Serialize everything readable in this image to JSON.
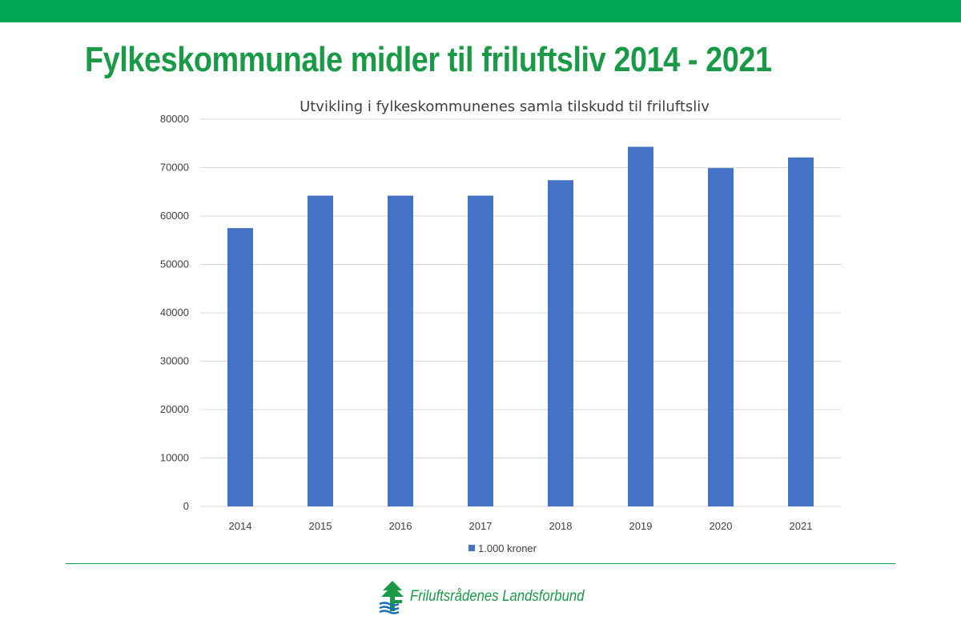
{
  "slide": {
    "title": "Fylkeskommunale midler til friluftsliv 2014 - 2021",
    "footer_brand": "Friluftsrådenes Landsforbund"
  },
  "colors": {
    "band": "#00a651",
    "title": "#1a9a47",
    "bar": "#4472c4",
    "grid": "#d9d9d9",
    "text": "#404040"
  },
  "chart_data": {
    "type": "bar",
    "title": "Utvikling i fylkeskommunenes samla tilskudd til friluftsliv",
    "categories": [
      "2014",
      "2015",
      "2016",
      "2017",
      "2018",
      "2019",
      "2020",
      "2021"
    ],
    "series": [
      {
        "name": "1.000 kroner",
        "values": [
          57500,
          64200,
          64200,
          64200,
          67400,
          74300,
          69900,
          72100
        ]
      }
    ],
    "xlabel": "",
    "ylabel": "",
    "ylim": [
      0,
      80000
    ],
    "yticks": [
      0,
      10000,
      20000,
      30000,
      40000,
      50000,
      60000,
      70000,
      80000
    ],
    "grid": true,
    "legend": "bottom"
  }
}
